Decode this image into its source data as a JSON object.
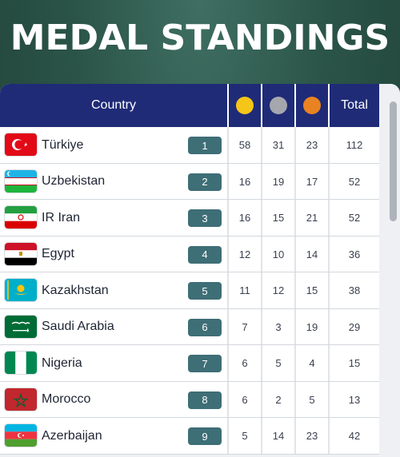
{
  "title": "MEDAL STANDINGS",
  "header": {
    "country": "Country",
    "total": "Total"
  },
  "colors": {
    "gold": "#f5c518",
    "silver": "#a5a7ae",
    "bronze": "#e98322",
    "header_bg": "#1f2b77",
    "rank_bg": "#3e6e76"
  },
  "rows": [
    {
      "country": "Türkiye",
      "flag": "flag-turkiye-icon",
      "rank": "1",
      "gold": "58",
      "silver": "31",
      "bronze": "23",
      "total": "112"
    },
    {
      "country": "Uzbekistan",
      "flag": "flag-uzbekistan-icon",
      "rank": "2",
      "gold": "16",
      "silver": "19",
      "bronze": "17",
      "total": "52"
    },
    {
      "country": "IR Iran",
      "flag": "flag-iran-icon",
      "rank": "3",
      "gold": "16",
      "silver": "15",
      "bronze": "21",
      "total": "52"
    },
    {
      "country": "Egypt",
      "flag": "flag-egypt-icon",
      "rank": "4",
      "gold": "12",
      "silver": "10",
      "bronze": "14",
      "total": "36"
    },
    {
      "country": "Kazakhstan",
      "flag": "flag-kazakhstan-icon",
      "rank": "5",
      "gold": "11",
      "silver": "12",
      "bronze": "15",
      "total": "38"
    },
    {
      "country": "Saudi Arabia",
      "flag": "flag-saudi-arabia-icon",
      "rank": "6",
      "gold": "7",
      "silver": "3",
      "bronze": "19",
      "total": "29"
    },
    {
      "country": "Nigeria",
      "flag": "flag-nigeria-icon",
      "rank": "7",
      "gold": "6",
      "silver": "5",
      "bronze": "4",
      "total": "15"
    },
    {
      "country": "Morocco",
      "flag": "flag-morocco-icon",
      "rank": "8",
      "gold": "6",
      "silver": "2",
      "bronze": "5",
      "total": "13"
    },
    {
      "country": "Azerbaijan",
      "flag": "flag-azerbaijan-icon",
      "rank": "9",
      "gold": "5",
      "silver": "14",
      "bronze": "23",
      "total": "42"
    }
  ]
}
